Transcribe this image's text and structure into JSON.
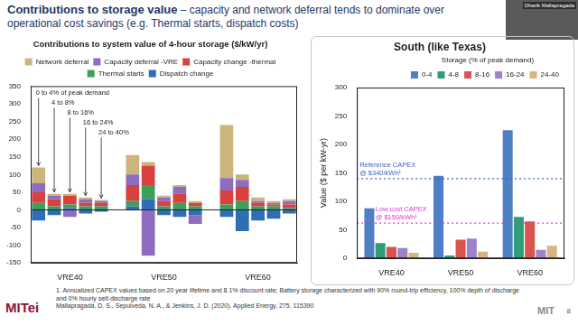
{
  "slide": {
    "title": "Contributions to storage value",
    "subtitle": "– capacity and network deferral tends to dominate over operational cost savings (e.g. Thermal starts, dispatch costs)",
    "footnote": "1.   Annualized CAPEX values based on 20 year lifetime and 8.1% discount rate; Battery storage characterized with 90% round-trip efficiency, 100% depth of discharge and 0% hourly self-discharge rate",
    "citation": "Mallapragada, D. S., Sepulveda, N. A., & Jenkins, J. D. (2020). Applied Energy, 275, 115390",
    "logo": "MITei",
    "logo_right": "MIT",
    "page": "8",
    "speaker": "Dharik Mallapragada"
  },
  "chart_data": [
    {
      "type": "bar",
      "title": "Contributions to system value of 4-hour storage ($/kW/yr)",
      "stacked": true,
      "categories": [
        null,
        null,
        "VRE40",
        null,
        null,
        null,
        null,
        null,
        "VRE50",
        null,
        null,
        null,
        null,
        null,
        "VRE60",
        null,
        null
      ],
      "series": [
        {
          "name": "Network deferral",
          "color": "#cdb47a",
          "values": [
            45,
            5,
            5,
            5,
            3,
            null,
            55,
            10,
            5,
            5,
            5,
            null,
            150,
            15,
            10,
            5,
            5
          ]
        },
        {
          "name": "Capacity deferral -VRE",
          "color": "#8e6cc0",
          "values": [
            25,
            10,
            -20,
            10,
            5,
            null,
            30,
            -130,
            10,
            20,
            -25,
            null,
            35,
            20,
            5,
            5,
            10
          ]
        },
        {
          "name": "Capacity change -thermal",
          "color": "#d9413e",
          "values": [
            30,
            20,
            25,
            10,
            10,
            null,
            45,
            55,
            15,
            25,
            10,
            null,
            40,
            40,
            10,
            5,
            10
          ]
        },
        {
          "name": "Thermal starts",
          "color": "#3e9e5a",
          "values": [
            20,
            10,
            10,
            10,
            10,
            null,
            15,
            40,
            10,
            20,
            10,
            null,
            15,
            25,
            10,
            10,
            5
          ]
        },
        {
          "name": "Dispatch change",
          "color": "#2f6db5",
          "values": [
            -30,
            -15,
            5,
            -10,
            -5,
            null,
            10,
            30,
            -15,
            -20,
            -15,
            null,
            -20,
            -60,
            -30,
            -25,
            -10
          ]
        }
      ],
      "annotations": [
        "0 to 4% of peak demand",
        "4 to 8%",
        "8 to 16%",
        "16 to 24%",
        "24 to 40%"
      ],
      "ylim": [
        -150,
        350
      ],
      "yticks": [
        -150,
        -100,
        -50,
        0,
        50,
        100,
        150,
        200,
        250,
        300,
        350
      ],
      "grid": false,
      "legend": "top"
    },
    {
      "type": "bar",
      "title": "South (like Texas)",
      "y_label": "Value ($ per kW-yr)",
      "legend_title": "Storage (% of peak demand)",
      "categories": [
        "VRE40",
        "VRE50",
        "VRE60"
      ],
      "series": [
        {
          "name": "0-4",
          "color": "#4f7fc4",
          "values": [
            88,
            145,
            225
          ]
        },
        {
          "name": "4-8",
          "color": "#2f9e77",
          "values": [
            27,
            5,
            73
          ]
        },
        {
          "name": "8-16",
          "color": "#d9534f",
          "values": [
            20,
            33,
            65
          ]
        },
        {
          "name": "16-24",
          "color": "#9d83c8",
          "values": [
            18,
            35,
            15
          ]
        },
        {
          "name": "24-40",
          "color": "#d6b67e",
          "values": [
            10,
            12,
            22
          ]
        }
      ],
      "reference_lines": [
        {
          "label": "Reference CAPEX @ $340/kWh¹",
          "value": 140,
          "color": "#3b5fc0"
        },
        {
          "label": "Low cost CAPEX @ $150/kWh¹",
          "value": 62,
          "color": "#d63ad6"
        }
      ],
      "ylim": [
        0,
        300
      ],
      "yticks": [
        0,
        50,
        100,
        150,
        200,
        250,
        300
      ],
      "grid": false,
      "legend": "top"
    }
  ]
}
